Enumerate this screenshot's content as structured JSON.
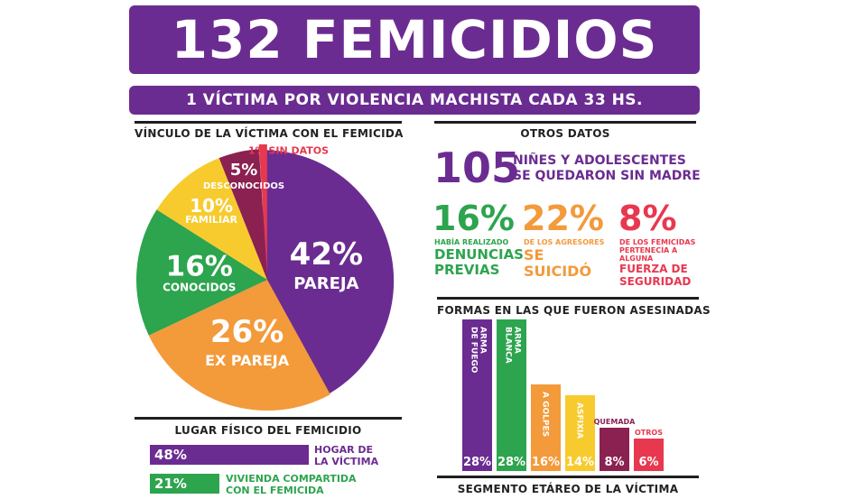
{
  "header": {
    "title": "132 FEMICIDIOS",
    "subtitle": "1 VÍCTIMA POR VIOLENCIA MACHISTA CADA 33 HS."
  },
  "colors": {
    "purple": "#6b2c91",
    "orange": "#f39a3b",
    "green": "#2da44e",
    "yellow": "#f7cb2d",
    "maroon": "#8b2151",
    "red": "#e8384f",
    "dark": "#1f1f1f"
  },
  "pie_section": {
    "title": "VÍNCULO DE LA VÍCTIMA CON EL FEMICIDA"
  },
  "otros_section": {
    "title": "OTROS DATOS",
    "children_number": "105",
    "children_text_line1": "NIÑES Y ADOLESCENTES",
    "children_text_line2": "SE QUEDARON SIN MADRE",
    "stats": [
      {
        "value": "16%",
        "caption_lines": [
          "HABÍA REALIZADO"
        ],
        "emph_lines": [
          "DENUNCIAS",
          "PREVIAS"
        ],
        "color": "#2da44e"
      },
      {
        "value": "22%",
        "caption_lines": [
          "DE LOS AGRESORES"
        ],
        "emph_lines": [
          "SE",
          "SUICIDÓ"
        ],
        "color": "#f39a3b"
      },
      {
        "value": "8%",
        "caption_lines": [
          "DE LOS FEMICIDAS",
          "PERTENECÍA A",
          "ALGUNA"
        ],
        "emph_lines": [
          "FUERZA DE",
          "SEGURIDAD"
        ],
        "color": "#e8384f"
      }
    ]
  },
  "bars_section": {
    "title": "FORMAS EN LAS QUE FUERON ASESINADAS"
  },
  "lugar_section": {
    "title": "LUGAR FÍSICO DEL FEMICIDIO",
    "items": [
      {
        "value": "48%",
        "label_lines": [
          "HOGAR DE",
          "LA VÍCTIMA"
        ],
        "color": "#6b2c91"
      },
      {
        "value": "21%",
        "label_lines": [
          "VIVIENDA COMPARTIDA",
          "CON EL FEMICIDA"
        ],
        "color": "#2da44e"
      }
    ]
  },
  "edad_section": {
    "title": "SEGMENTO ETÁREO DE LA VÍCTIMA"
  },
  "chart_data": [
    {
      "type": "pie",
      "title": "VÍNCULO DE LA VÍCTIMA CON EL FEMICIDA",
      "slices": [
        {
          "name": "PAREJA",
          "value": 42,
          "label": "42%",
          "color": "#6b2c91"
        },
        {
          "name": "EX PAREJA",
          "value": 26,
          "label": "26%",
          "color": "#f39a3b"
        },
        {
          "name": "CONOCIDOS",
          "value": 16,
          "label": "16%",
          "color": "#2da44e"
        },
        {
          "name": "FAMILIAR",
          "value": 10,
          "label": "10%",
          "color": "#f7cb2d"
        },
        {
          "name": "DESCONOCIDOS",
          "value": 5,
          "label": "5%",
          "color": "#8b2151"
        },
        {
          "name": "SIN DATOS",
          "value": 1,
          "label": "1%",
          "color": "#e8384f"
        }
      ]
    },
    {
      "type": "bar",
      "title": "FORMAS EN LAS QUE FUERON ASESINADAS",
      "categories": [
        "ARMA DE FUEGO",
        "ARMA BLANCA",
        "A GOLPES",
        "ASFIXIA",
        "QUEMADA",
        "OTROS"
      ],
      "category_lines": [
        [
          "ARMA",
          "DE FUEGO"
        ],
        [
          "ARMA",
          "BLANCA"
        ],
        [
          "A GOLPES"
        ],
        [
          "ASFIXIA"
        ],
        [
          "QUEMADA"
        ],
        [
          "OTROS"
        ]
      ],
      "values": [
        28,
        28,
        16,
        14,
        8,
        6
      ],
      "value_labels": [
        "28%",
        "28%",
        "16%",
        "14%",
        "8%",
        "6%"
      ],
      "colors": [
        "#6b2c91",
        "#2da44e",
        "#f39a3b",
        "#f7cb2d",
        "#8b2151",
        "#e8384f"
      ],
      "ylim": [
        0,
        28
      ]
    }
  ]
}
